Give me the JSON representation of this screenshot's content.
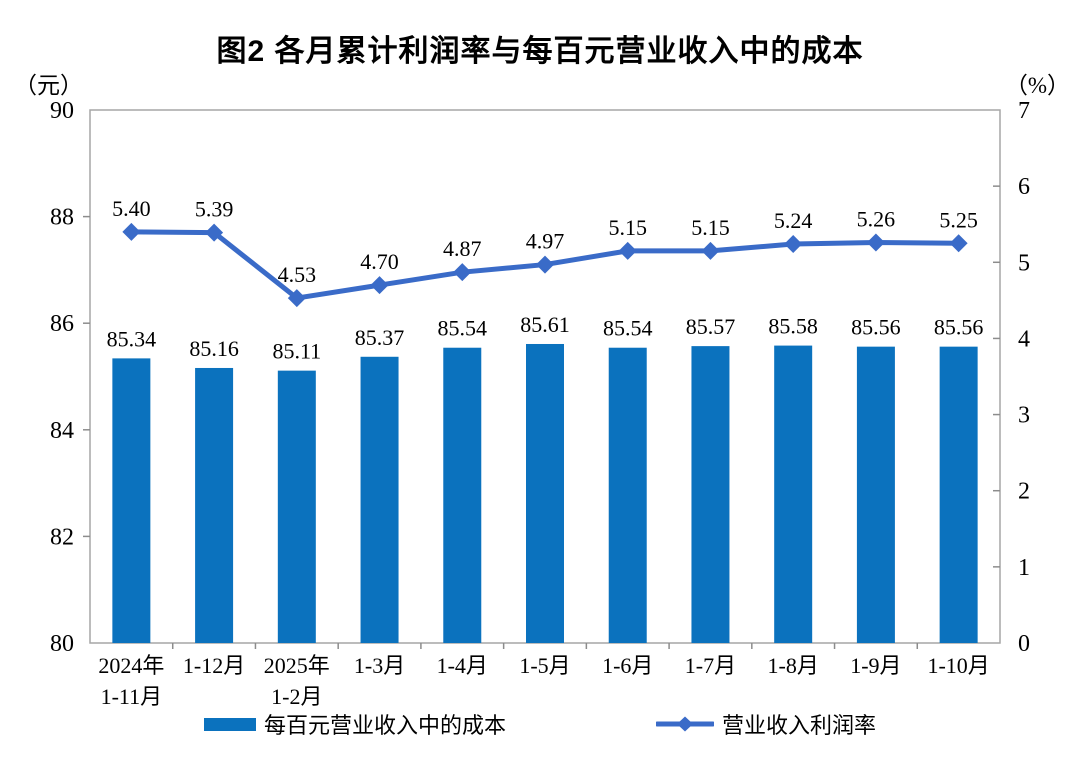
{
  "chart_data": {
    "type": "bar+line",
    "title": "图2 各月累计利润率与每百元营业收入中的成本",
    "categories": [
      "2024年\n1-11月",
      "1-12月",
      "2025年\n1-2月",
      "1-3月",
      "1-4月",
      "1-5月",
      "1-6月",
      "1-7月",
      "1-8月",
      "1-9月",
      "1-10月"
    ],
    "series": [
      {
        "name": "每百元营业收入中的成本",
        "type": "bar",
        "axis": "left",
        "unit": "元",
        "color": "#0b72be",
        "values": [
          85.34,
          85.16,
          85.11,
          85.37,
          85.54,
          85.61,
          85.54,
          85.57,
          85.58,
          85.56,
          85.56
        ]
      },
      {
        "name": "营业收入利润率",
        "type": "line",
        "axis": "right",
        "unit": "%",
        "color": "#3a6bc8",
        "marker": "diamond",
        "values": [
          5.4,
          5.39,
          4.53,
          4.7,
          4.87,
          4.97,
          5.15,
          5.15,
          5.24,
          5.26,
          5.25
        ]
      }
    ],
    "left_axis": {
      "label": "（元）",
      "range": [
        80,
        90
      ],
      "tick_step": 2,
      "ticks": [
        80,
        82,
        84,
        86,
        88,
        90
      ]
    },
    "right_axis": {
      "label": "（%）",
      "range": [
        0,
        7
      ],
      "tick_step": 1,
      "ticks": [
        0,
        1,
        2,
        3,
        4,
        5,
        6,
        7
      ]
    },
    "grid": false,
    "value_labels": true,
    "legend_position": "bottom",
    "colors": {
      "bar": "#0b72be",
      "line": "#3a6bc8",
      "axis_border": "#a6a6a6",
      "tick": "#8c8c8c",
      "text": "#000000"
    }
  }
}
